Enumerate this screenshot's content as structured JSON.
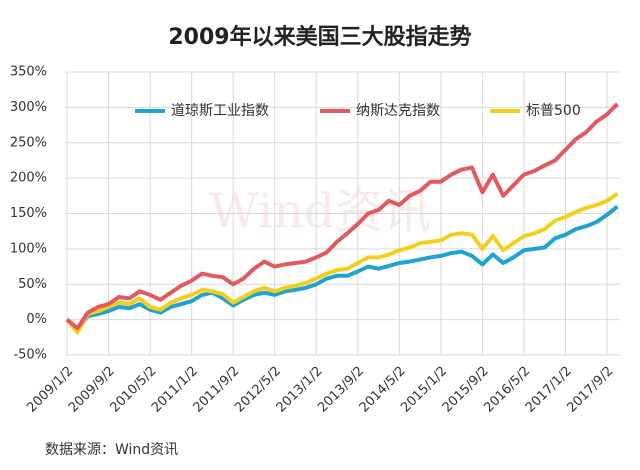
{
  "chart_data": {
    "type": "line",
    "title": "2009年以来美国三大股指走势",
    "source": "数据来源：Wind资讯",
    "watermark": "Wind资讯",
    "categories": [
      "2009/1/2",
      null,
      null,
      null,
      "2009/9/2",
      null,
      null,
      null,
      "2010/5/2",
      null,
      null,
      null,
      "2011/1/2",
      null,
      null,
      null,
      "2011/9/2",
      null,
      null,
      null,
      "2012/5/2",
      null,
      null,
      null,
      "2013/1/2",
      null,
      null,
      null,
      "2013/9/2",
      null,
      null,
      null,
      "2014/5/2",
      null,
      null,
      null,
      "2015/1/2",
      null,
      null,
      null,
      "2015/9/2",
      null,
      null,
      null,
      "2016/5/2",
      null,
      null,
      null,
      "2017/1/2",
      null,
      null,
      null,
      "2017/9/2",
      null
    ],
    "series": [
      {
        "name": "道琼斯工业指数",
        "color": "#1fa3d1",
        "values": [
          0,
          -15,
          5,
          8,
          12,
          18,
          16,
          22,
          14,
          10,
          18,
          22,
          26,
          35,
          38,
          30,
          20,
          28,
          35,
          38,
          35,
          40,
          42,
          45,
          50,
          58,
          62,
          62,
          68,
          75,
          72,
          76,
          80,
          82,
          85,
          88,
          90,
          94,
          96,
          90,
          78,
          92,
          80,
          88,
          98,
          100,
          102,
          115,
          120,
          128,
          132,
          138,
          148,
          160
        ]
      },
      {
        "name": "纳斯达克指数",
        "color": "#e05a5f",
        "values": [
          0,
          -12,
          10,
          18,
          22,
          32,
          30,
          40,
          35,
          28,
          38,
          48,
          55,
          65,
          62,
          60,
          50,
          58,
          72,
          82,
          75,
          78,
          80,
          82,
          88,
          95,
          110,
          122,
          135,
          150,
          155,
          168,
          162,
          175,
          182,
          195,
          195,
          205,
          212,
          215,
          180,
          205,
          175,
          190,
          205,
          210,
          218,
          225,
          240,
          255,
          265,
          280,
          290,
          305
        ]
      },
      {
        "name": "标普500",
        "color": "#f2cf1c",
        "values": [
          0,
          -18,
          8,
          12,
          18,
          24,
          22,
          30,
          18,
          14,
          24,
          30,
          35,
          42,
          40,
          36,
          24,
          32,
          40,
          45,
          40,
          45,
          48,
          52,
          58,
          65,
          70,
          72,
          80,
          88,
          88,
          92,
          98,
          102,
          108,
          110,
          112,
          120,
          122,
          120,
          100,
          118,
          98,
          108,
          118,
          122,
          128,
          140,
          145,
          152,
          158,
          162,
          168,
          178
        ]
      }
    ],
    "ylim": [
      -50,
      350
    ],
    "yticks": [
      {
        "value": -50,
        "label": "-50%"
      },
      {
        "value": 0,
        "label": "0%"
      },
      {
        "value": 50,
        "label": "50%"
      },
      {
        "value": 100,
        "label": "100%"
      },
      {
        "value": 150,
        "label": "150%"
      },
      {
        "value": 200,
        "label": "200%"
      },
      {
        "value": 250,
        "label": "250%"
      },
      {
        "value": 300,
        "label": "300%"
      },
      {
        "value": 350,
        "label": "350%"
      }
    ],
    "grid": true
  }
}
